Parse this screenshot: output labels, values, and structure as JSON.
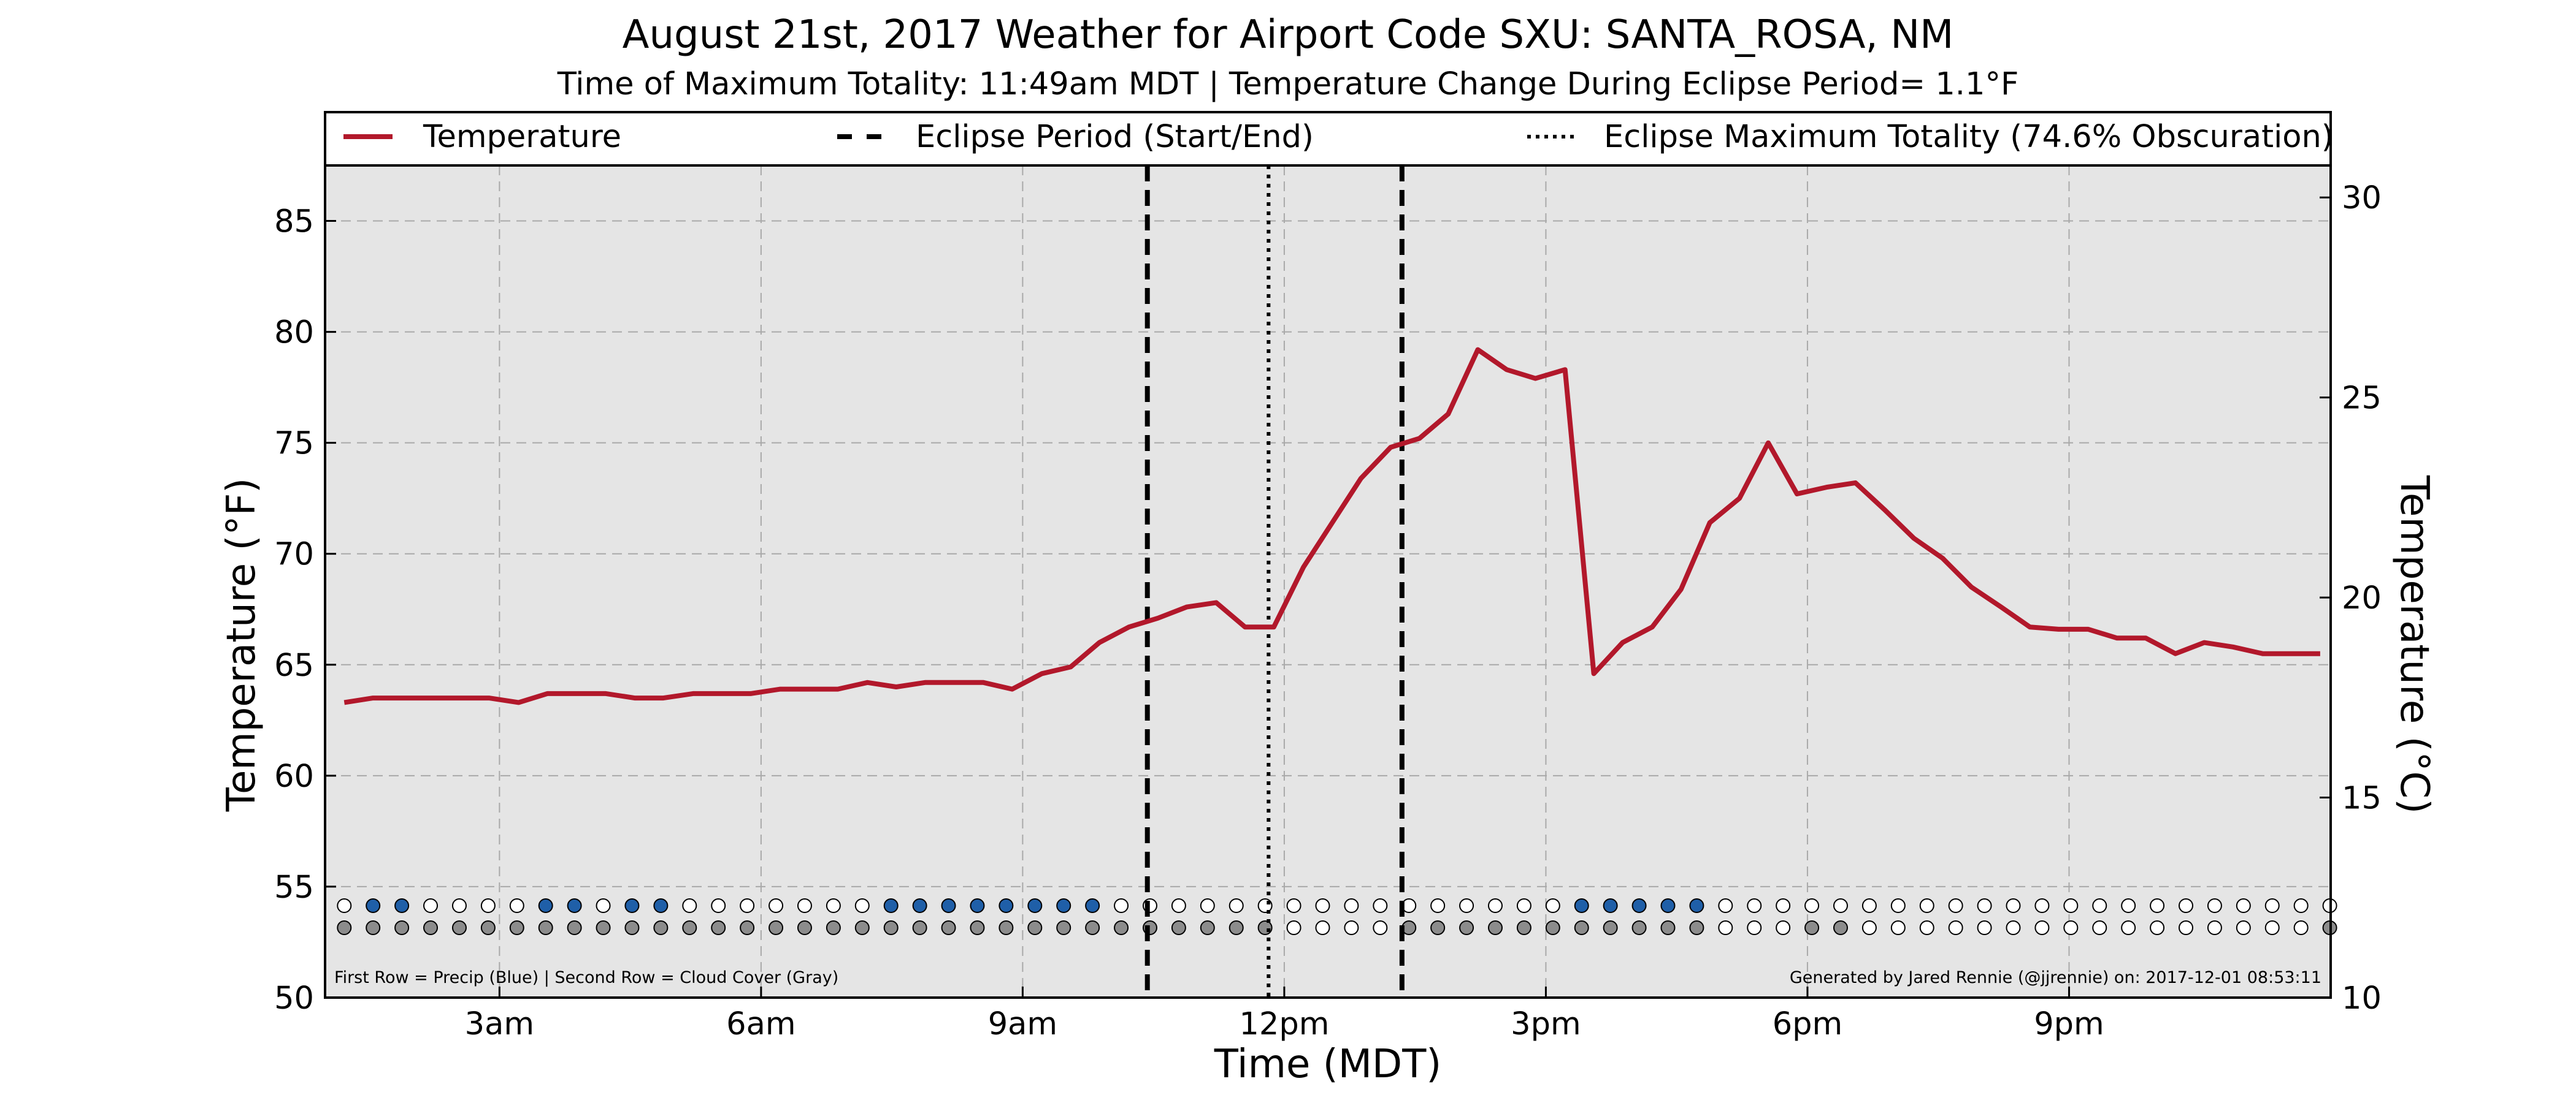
{
  "title": "August 21st, 2017 Weather for Airport Code SXU: SANTA_ROSA, NM",
  "subtitle": "Time of Maximum Totality: 11:49am MDT | Temperature Change During Eclipse Period= 1.1°F",
  "footnote_left": "First Row = Precip (Blue) | Second Row = Cloud Cover (Gray)",
  "footnote_right": "Generated by Jared Rennie (@jjrennie) on: 2017-12-01 08:53:11",
  "colors": {
    "temperature_line": "#b2182b",
    "plot_background": "#e5e5e5",
    "precip": "#1f5fa8",
    "cloud": "#8c8c8c",
    "empty_marker": "#ffffff"
  },
  "chart_data": {
    "type": "line",
    "title": "August 21st, 2017 Weather for Airport Code SXU: SANTA_ROSA, NM",
    "xlabel": "Time (MDT)",
    "ylabel": "Temperature (°F)",
    "ylabel_right": "Temperature (°C)",
    "x_unit": "hours since midnight MDT",
    "xlim": [
      1.0,
      24.0
    ],
    "ylim": [
      50,
      87.5
    ],
    "ylim_right": [
      10,
      30.8
    ],
    "grid": true,
    "legend_placement": "top (above plot area)",
    "x_ticks": [
      {
        "x": 3,
        "label": "3am"
      },
      {
        "x": 6,
        "label": "6am"
      },
      {
        "x": 9,
        "label": "9am"
      },
      {
        "x": 12,
        "label": "12pm"
      },
      {
        "x": 15,
        "label": "3pm"
      },
      {
        "x": 18,
        "label": "6pm"
      },
      {
        "x": 21,
        "label": "9pm"
      }
    ],
    "y_ticks": [
      50,
      55,
      60,
      65,
      70,
      75,
      80,
      85
    ],
    "y_ticks_right": [
      10,
      15,
      20,
      25,
      30
    ],
    "legend": [
      {
        "label": "Temperature",
        "style": "solid"
      },
      {
        "label": "Eclipse Period (Start/End)",
        "style": "dashed"
      },
      {
        "label": "Eclipse Maximum Totality (74.6% Obscuration)",
        "style": "dotted"
      }
    ],
    "eclipse": {
      "start": 10.43,
      "end": 13.35,
      "max": 11.82
    },
    "series": [
      {
        "name": "Temperature",
        "points": [
          [
            1.22,
            63.3
          ],
          [
            1.55,
            63.5
          ],
          [
            1.88,
            63.5
          ],
          [
            2.22,
            63.5
          ],
          [
            2.55,
            63.5
          ],
          [
            2.88,
            63.5
          ],
          [
            3.22,
            63.3
          ],
          [
            3.55,
            63.7
          ],
          [
            3.88,
            63.7
          ],
          [
            4.22,
            63.7
          ],
          [
            4.55,
            63.5
          ],
          [
            4.88,
            63.5
          ],
          [
            5.22,
            63.7
          ],
          [
            5.55,
            63.7
          ],
          [
            5.88,
            63.7
          ],
          [
            6.22,
            63.9
          ],
          [
            6.55,
            63.9
          ],
          [
            6.88,
            63.9
          ],
          [
            7.22,
            64.2
          ],
          [
            7.55,
            64.0
          ],
          [
            7.88,
            64.2
          ],
          [
            8.22,
            64.2
          ],
          [
            8.55,
            64.2
          ],
          [
            8.88,
            63.9
          ],
          [
            9.22,
            64.6
          ],
          [
            9.55,
            64.9
          ],
          [
            9.88,
            66.0
          ],
          [
            10.22,
            66.7
          ],
          [
            10.55,
            67.1
          ],
          [
            10.88,
            67.6
          ],
          [
            11.22,
            67.8
          ],
          [
            11.55,
            66.7
          ],
          [
            11.88,
            66.7
          ],
          [
            12.22,
            69.4
          ],
          [
            12.55,
            71.4
          ],
          [
            12.88,
            73.4
          ],
          [
            13.22,
            74.8
          ],
          [
            13.55,
            75.2
          ],
          [
            13.88,
            76.3
          ],
          [
            14.22,
            79.2
          ],
          [
            14.55,
            78.3
          ],
          [
            14.88,
            77.9
          ],
          [
            15.22,
            78.3
          ],
          [
            15.55,
            64.6
          ],
          [
            15.88,
            66.0
          ],
          [
            16.22,
            66.7
          ],
          [
            16.55,
            68.4
          ],
          [
            16.88,
            71.4
          ],
          [
            17.22,
            72.5
          ],
          [
            17.55,
            75.0
          ],
          [
            17.88,
            72.7
          ],
          [
            18.22,
            73.0
          ],
          [
            18.55,
            73.2
          ],
          [
            18.88,
            72.0
          ],
          [
            19.22,
            70.7
          ],
          [
            19.55,
            69.8
          ],
          [
            19.88,
            68.5
          ],
          [
            20.22,
            67.6
          ],
          [
            20.55,
            66.7
          ],
          [
            20.88,
            66.6
          ],
          [
            21.22,
            66.6
          ],
          [
            21.55,
            66.2
          ],
          [
            21.88,
            66.2
          ],
          [
            22.22,
            65.5
          ],
          [
            22.55,
            66.0
          ],
          [
            22.88,
            65.8
          ],
          [
            23.22,
            65.5
          ],
          [
            23.55,
            65.5
          ],
          [
            23.88,
            65.5
          ]
        ]
      }
    ],
    "precip_row": [
      0,
      1,
      1,
      0,
      0,
      0,
      0,
      1,
      1,
      0,
      1,
      1,
      0,
      0,
      0,
      0,
      0,
      0,
      0,
      1,
      1,
      1,
      1,
      1,
      1,
      1,
      1,
      0,
      0,
      0,
      0,
      0,
      0,
      0,
      0,
      0,
      0,
      0,
      0,
      0,
      0,
      0,
      0,
      1,
      1,
      1,
      1,
      1,
      0,
      0,
      0,
      0,
      0,
      0,
      0,
      0,
      0,
      0,
      0,
      0,
      0,
      0,
      0,
      0,
      0,
      0,
      0,
      0,
      0,
      0
    ],
    "cloud_row": [
      1,
      1,
      1,
      1,
      1,
      1,
      1,
      1,
      1,
      1,
      1,
      1,
      1,
      1,
      1,
      1,
      1,
      1,
      1,
      1,
      1,
      1,
      1,
      1,
      1,
      1,
      1,
      1,
      1,
      1,
      1,
      1,
      1,
      0,
      0,
      0,
      0,
      1,
      1,
      1,
      1,
      1,
      1,
      1,
      1,
      1,
      1,
      1,
      0,
      0,
      0,
      1,
      1,
      0,
      0,
      0,
      0,
      0,
      0,
      0,
      0,
      0,
      0,
      0,
      0,
      0,
      0,
      0,
      0,
      1
    ]
  }
}
